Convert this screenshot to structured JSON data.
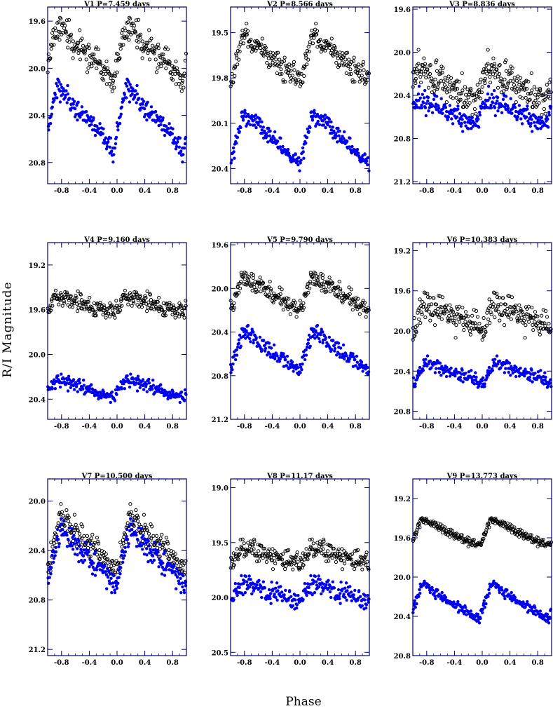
{
  "figure": {
    "xlabel": "Phase",
    "ylabel": "R/I Magnitude"
  },
  "colors": {
    "open_points": "#000000",
    "filled_points": "#0000ee",
    "frame": "#000066"
  },
  "chart_data": [
    {
      "type": "scatter",
      "title": "V1 P=7.459 days",
      "period": 7.459,
      "xlim": [
        -1.0,
        1.0
      ],
      "ylim": [
        20.98,
        19.48
      ],
      "xticks": [
        "-0.8",
        "-0.4",
        "0.0",
        "0.4",
        "0.8"
      ],
      "yticks": [
        "19.6",
        "20.0",
        "20.4",
        "20.8"
      ],
      "series_open": {
        "center": 19.86,
        "amplitude": 0.22,
        "scatter": 0.17,
        "phase0": 0.05
      },
      "series_filled": {
        "center": 20.42,
        "amplitude": 0.27,
        "scatter": 0.12,
        "phase0": 0.05
      }
    },
    {
      "type": "scatter",
      "title": "V2 P=8.566 days",
      "period": 8.566,
      "xlim": [
        -1.0,
        1.0
      ],
      "ylim": [
        20.5,
        19.33
      ],
      "xticks": [
        "-0.8",
        "-0.4",
        "0.0",
        "0.4",
        "0.8"
      ],
      "yticks": [
        "19.5",
        "19.8",
        "20.1",
        "20.4"
      ],
      "series_open": {
        "center": 19.67,
        "amplitude": 0.15,
        "scatter": 0.11,
        "phase0": 0.0
      },
      "series_filled": {
        "center": 20.2,
        "amplitude": 0.17,
        "scatter": 0.08,
        "phase0": 0.0
      }
    },
    {
      "type": "scatter",
      "title": "V3 P=8.836 days",
      "period": 8.836,
      "xlim": [
        -1.0,
        1.0
      ],
      "ylim": [
        21.22,
        19.58
      ],
      "xticks": [
        "-0.8",
        "-0.4",
        "0.0",
        "0.4",
        "0.8"
      ],
      "yticks": [
        "19.6",
        "20.0",
        "20.4",
        "20.8",
        "21.2"
      ],
      "series_open": {
        "center": 20.3,
        "amplitude": 0.18,
        "scatter": 0.22,
        "phase0": 0.1
      },
      "series_filled": {
        "center": 20.55,
        "amplitude": 0.12,
        "scatter": 0.15,
        "phase0": 0.1
      }
    },
    {
      "type": "scatter",
      "title": "V4 P=9.160 days",
      "period": 9.16,
      "xlim": [
        -1.0,
        1.0
      ],
      "ylim": [
        20.58,
        19.0
      ],
      "xticks": [
        "-0.8",
        "-0.4",
        "0.0",
        "0.4",
        "0.8"
      ],
      "yticks": [
        "19.2",
        "19.6",
        "20.0",
        "20.4"
      ],
      "series_open": {
        "center": 19.55,
        "amplitude": 0.07,
        "scatter": 0.12,
        "phase0": 0.05
      },
      "series_filled": {
        "center": 20.3,
        "amplitude": 0.09,
        "scatter": 0.09,
        "phase0": 0.05
      }
    },
    {
      "type": "scatter",
      "title": "V5 P=9.790 days",
      "period": 9.79,
      "xlim": [
        -1.0,
        1.0
      ],
      "ylim": [
        21.2,
        19.58
      ],
      "xticks": [
        "-0.8",
        "-0.4",
        "0.0",
        "0.4",
        "0.8"
      ],
      "yticks": [
        "19.6",
        "20.0",
        "20.4",
        "20.8",
        "21.2"
      ],
      "series_open": {
        "center": 20.05,
        "amplitude": 0.16,
        "scatter": 0.13,
        "phase0": 0.0
      },
      "series_filled": {
        "center": 20.58,
        "amplitude": 0.2,
        "scatter": 0.11,
        "phase0": 0.0
      }
    },
    {
      "type": "scatter",
      "title": "V6 P=10.383 days",
      "period": 10.383,
      "xlim": [
        -1.0,
        1.0
      ],
      "ylim": [
        20.88,
        19.12
      ],
      "xticks": [
        "-0.8",
        "-0.4",
        "0.0",
        "0.4",
        "0.8"
      ],
      "yticks": [
        "19.2",
        "19.6",
        "20.0",
        "20.4",
        "20.8"
      ],
      "series_open": {
        "center": 19.85,
        "amplitude": 0.12,
        "scatter": 0.25,
        "phase0": 0.0
      },
      "series_filled": {
        "center": 20.42,
        "amplitude": 0.1,
        "scatter": 0.1,
        "phase0": 0.0
      }
    },
    {
      "type": "scatter",
      "title": "V7 P=10.500 days",
      "period": 10.5,
      "xlim": [
        -1.0,
        1.0
      ],
      "ylim": [
        21.25,
        19.82
      ],
      "xticks": [
        "-0.8",
        "-0.4",
        "0.0",
        "0.4",
        "0.8"
      ],
      "yticks": [
        "20.0",
        "20.4",
        "20.8",
        "21.2"
      ],
      "series_open": {
        "center": 20.35,
        "amplitude": 0.22,
        "scatter": 0.17,
        "phase0": 0.0
      },
      "series_filled": {
        "center": 20.45,
        "amplitude": 0.22,
        "scatter": 0.15,
        "phase0": 0.0
      }
    },
    {
      "type": "scatter",
      "title": "V8 P=11.17 days",
      "period": 11.17,
      "xlim": [
        -1.0,
        1.0
      ],
      "ylim": [
        20.53,
        18.92
      ],
      "xticks": [
        "-0.8",
        "-0.4",
        "0.0",
        "0.4",
        "0.8"
      ],
      "yticks": [
        "19.0",
        "19.5",
        "20.0",
        "20.5"
      ],
      "series_open": {
        "center": 19.62,
        "amplitude": 0.08,
        "scatter": 0.15,
        "phase0": 0.0
      },
      "series_filled": {
        "center": 19.95,
        "amplitude": 0.08,
        "scatter": 0.15,
        "phase0": 0.0
      }
    },
    {
      "type": "scatter",
      "title": "V9 P=13.773 days",
      "period": 13.773,
      "xlim": [
        -1.0,
        1.0
      ],
      "ylim": [
        20.8,
        19.0
      ],
      "xticks": [
        "-0.8",
        "-0.4",
        "0.0",
        "0.4",
        "0.8"
      ],
      "yticks": [
        "19.2",
        "19.6",
        "20.0",
        "20.4",
        "20.8"
      ],
      "series_open": {
        "center": 19.55,
        "amplitude": 0.14,
        "scatter": 0.06,
        "phase0": 0.05
      },
      "series_filled": {
        "center": 20.25,
        "amplitude": 0.18,
        "scatter": 0.07,
        "phase0": 0.05
      }
    }
  ]
}
